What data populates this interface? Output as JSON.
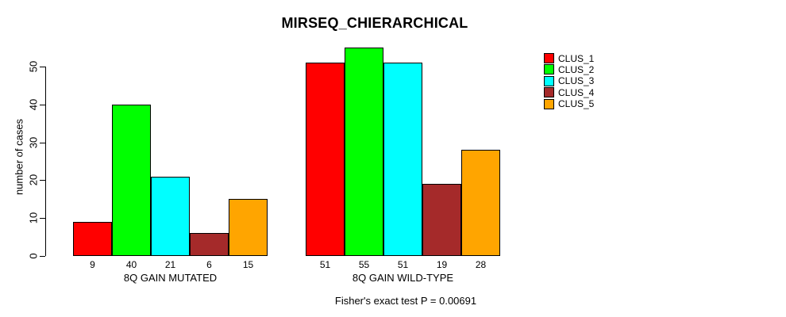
{
  "chart_data": {
    "type": "bar",
    "title": "MIRSEQ_CHIERARCHICAL",
    "xlabel": "",
    "ylabel": "number of cases",
    "annotation": "Fisher's exact test P = 0.00691",
    "ylim": [
      0,
      55
    ],
    "yticks": [
      0,
      10,
      20,
      30,
      40,
      50
    ],
    "grid": false,
    "legend_position": "right",
    "bar_value_labels_shown": true,
    "categories": [
      "8Q GAIN MUTATED",
      "8Q GAIN WILD-TYPE"
    ],
    "series": [
      {
        "name": "CLUS_1",
        "color": "#ff0000",
        "values": [
          9,
          51
        ]
      },
      {
        "name": "CLUS_2",
        "color": "#00ff00",
        "values": [
          40,
          55
        ]
      },
      {
        "name": "CLUS_3",
        "color": "#00ffff",
        "values": [
          21,
          51
        ]
      },
      {
        "name": "CLUS_4",
        "color": "#a52a2a",
        "values": [
          6,
          19
        ]
      },
      {
        "name": "CLUS_5",
        "color": "#ffa500",
        "values": [
          15,
          28
        ]
      }
    ],
    "colors": {
      "background": "#ffffff",
      "axis": "#000000",
      "bar_border": "#000000",
      "text": "#000000"
    }
  }
}
